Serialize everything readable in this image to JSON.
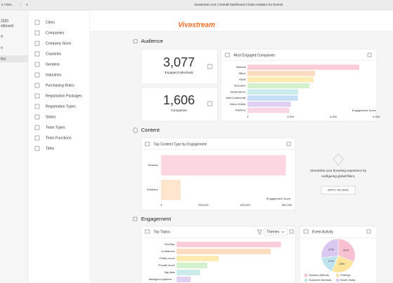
{
  "browser": {
    "tab": "e / Dev...",
    "url": "vivastream.com | Overall Dashboard | Data Analytics for Events"
  },
  "sidebar": [
    "2020",
    "shboard",
    "d",
    "o",
    "tics"
  ],
  "menu": [
    "Cities",
    "Companies",
    "Company Sizes",
    "Countries",
    "Genders",
    "Industries",
    "Purchasing Roles",
    "Registration Packages",
    "Registration Types",
    "States",
    "Team Types",
    "Team Functions",
    "Titles"
  ],
  "logo": "Vivastream",
  "sections": [
    "Audience",
    "Content",
    "Engagement"
  ],
  "kpis": [
    {
      "value": "3,077",
      "label": "Engaged Individuals"
    },
    {
      "value": "1,606",
      "label": "Companies"
    }
  ],
  "empty_state": {
    "text": [
      "Streamline your browsing experience by",
      "configuring global filters."
    ],
    "button": "APPLY FILTERS"
  },
  "chart_data": [
    {
      "type": "hbar",
      "title": "Most Engaged Companies",
      "categories": [
        "Marriott",
        "Hilton",
        "Hyatt",
        "Sheraton",
        "Destinations",
        "InterContinental",
        "Mena Hotels",
        "Marketo"
      ],
      "values": [
        7800,
        4700,
        4600,
        4300,
        3500,
        3500,
        3000,
        2900
      ],
      "colors": [
        "#f9c4d2",
        "#fcd6b6",
        "#fde8a6",
        "#cdeec6",
        "#bfe7e6",
        "#bcd8f4",
        "#dbc9f1",
        "#f8d0e2"
      ],
      "xlim": [
        0,
        9000
      ],
      "xticks": [
        0,
        {
          "value": 3000,
          "label": "3,000"
        },
        {
          "value": 6000,
          "label": "6,000"
        },
        {
          "value": 9000,
          "label": "9,000"
        }
      ],
      "xlabel": "Engagement Score"
    },
    {
      "type": "hbar",
      "title": "Top Content Type by Engagement",
      "categories": [
        "Session",
        "Exhibitor"
      ],
      "values": [
        593000,
        90000
      ],
      "colors": [
        "#fbd0dc",
        "#fde0c6"
      ],
      "xlim": [
        0,
        600000
      ],
      "xticks": [
        0,
        {
          "value": 200000,
          "label": "200,000"
        },
        {
          "value": 400000,
          "label": "400,000"
        },
        {
          "value": 600000,
          "label": "600,000"
        }
      ],
      "xlabel": "Engagement Score"
    },
    {
      "type": "hbar",
      "title": "Top Topics",
      "dropdown": "Themes",
      "categories": [
        "DevOps",
        "Containers",
        "Public cloud",
        "Private cloud",
        "Big data",
        "Intelligent systems ..."
      ],
      "values": [
        100,
        90,
        40,
        29,
        22,
        13
      ],
      "colors": [
        "#f9c4d2",
        "#fcd6b6",
        "#fde8a6",
        "#cdeec6",
        "#bfe7e6",
        "#dbc9f1"
      ]
    },
    {
      "type": "pie",
      "title": "Event Activity",
      "categories": [
        "Session Attends",
        "Pairings",
        "Scanned Interests",
        "Booth Visits"
      ],
      "values": [
        31,
        25,
        17,
        27
      ],
      "value_labels": [
        "31%",
        "25%",
        "17%",
        "27%"
      ],
      "colors": [
        "#f7c1d1",
        "#fde49c",
        "#bfe4ef",
        "#d9c8f0"
      ]
    }
  ]
}
